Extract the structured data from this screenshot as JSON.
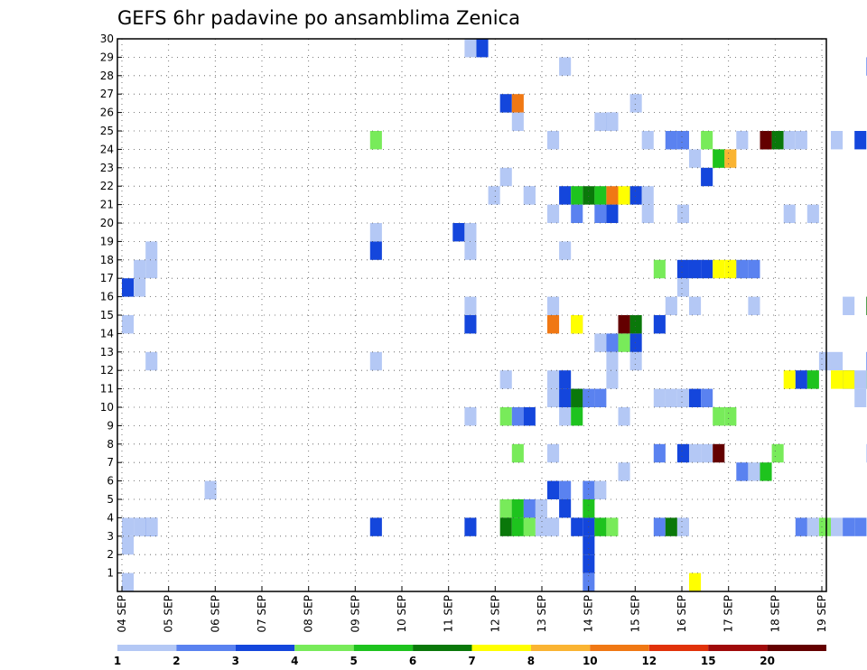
{
  "chart_data": {
    "type": "heatmap",
    "title": "GEFS 6hr padavine po ansamblima Zenica",
    "xlabel": "",
    "ylabel": "",
    "x_tick_labels": [
      "04 SEP",
      "05 SEP",
      "06 SEP",
      "07 SEP",
      "08 SEP",
      "09 SEP",
      "10 SEP",
      "11 SEP",
      "12 SEP",
      "13 SEP",
      "14 SEP",
      "15 SEP",
      "16 SEP",
      "17 SEP",
      "18 SEP",
      "19 SEP"
    ],
    "y_tick_labels": [
      1,
      2,
      3,
      4,
      5,
      6,
      7,
      8,
      9,
      10,
      11,
      12,
      13,
      14,
      15,
      16,
      17,
      18,
      19,
      20,
      21,
      22,
      23,
      24,
      25,
      26,
      27,
      28,
      29,
      30
    ],
    "ylim": [
      0,
      30
    ],
    "x_unit": "6-hour step from 04 SEP (4 steps per day)",
    "grid": true,
    "colorbar": {
      "labels": [
        "1",
        "2",
        "3",
        "4",
        "5",
        "6",
        "7",
        "8",
        "10",
        "12",
        "15",
        "20"
      ],
      "colors": [
        "#b4c8f5",
        "#5a82f0",
        "#1446dc",
        "#78eb5a",
        "#1ec31e",
        "#0a780a",
        "#ffff00",
        "#fab432",
        "#f07814",
        "#e1320a",
        "#a00a0a",
        "#640000"
      ]
    },
    "cells": [
      [
        0,
        0,
        1
      ],
      [
        0,
        2,
        1
      ],
      [
        0,
        3,
        1
      ],
      [
        1,
        3,
        1
      ],
      [
        2,
        3,
        3
      ],
      [
        0,
        14,
        1
      ],
      [
        0,
        16,
        3
      ],
      [
        1,
        16,
        1
      ],
      [
        1,
        17,
        1
      ],
      [
        2,
        18,
        1
      ],
      [
        2,
        17,
        1
      ],
      [
        2,
        12,
        1
      ],
      [
        2,
        3,
        1
      ],
      [
        7,
        5,
        1
      ],
      [
        21,
        3,
        3
      ],
      [
        21,
        12,
        1
      ],
      [
        21,
        18,
        3
      ],
      [
        21,
        19,
        1
      ],
      [
        21,
        24,
        4
      ],
      [
        29,
        18,
        1
      ],
      [
        29,
        15,
        1
      ],
      [
        29,
        14,
        3
      ],
      [
        29,
        9,
        1
      ],
      [
        29,
        3,
        3
      ],
      [
        28,
        19,
        3
      ],
      [
        29,
        19,
        1
      ],
      [
        29,
        29,
        1
      ],
      [
        30,
        29,
        3
      ],
      [
        32,
        9,
        4
      ],
      [
        33,
        9,
        2
      ],
      [
        34,
        9,
        3
      ],
      [
        33,
        7,
        4
      ],
      [
        32,
        4,
        6
      ],
      [
        32,
        3,
        6
      ],
      [
        32,
        4,
        4
      ],
      [
        33,
        3,
        5
      ],
      [
        33,
        4,
        5
      ],
      [
        34,
        4,
        2
      ],
      [
        34,
        3,
        4
      ],
      [
        35,
        4,
        1
      ],
      [
        35,
        3,
        1
      ],
      [
        31,
        21,
        1
      ],
      [
        32,
        22,
        1
      ],
      [
        32,
        11,
        1
      ],
      [
        32,
        26,
        3
      ],
      [
        33,
        26,
        9
      ],
      [
        33,
        25,
        1
      ],
      [
        34,
        21,
        1
      ],
      [
        34,
        21,
        1
      ],
      [
        36,
        11,
        1
      ],
      [
        36,
        3,
        1
      ],
      [
        36,
        5,
        3
      ],
      [
        36,
        7,
        1
      ],
      [
        36,
        10,
        1
      ],
      [
        36,
        14,
        9
      ],
      [
        36,
        15,
        1
      ],
      [
        36,
        24,
        1
      ],
      [
        36,
        20,
        1
      ],
      [
        37,
        10,
        3
      ],
      [
        37,
        4,
        3
      ],
      [
        37,
        5,
        2
      ],
      [
        37,
        9,
        1
      ],
      [
        37,
        18,
        1
      ],
      [
        37,
        21,
        3
      ],
      [
        37,
        28,
        1
      ],
      [
        37,
        11,
        3
      ],
      [
        38,
        10,
        3
      ],
      [
        38,
        3,
        3
      ],
      [
        38,
        21,
        5
      ],
      [
        38,
        20,
        2
      ],
      [
        38,
        9,
        5
      ],
      [
        38,
        10,
        6
      ],
      [
        38,
        14,
        8
      ],
      [
        38,
        14,
        7
      ],
      [
        39,
        21,
        6
      ],
      [
        39,
        10,
        2
      ],
      [
        39,
        3,
        3
      ],
      [
        39,
        5,
        2
      ],
      [
        39,
        4,
        5
      ],
      [
        39,
        1,
        3
      ],
      [
        39,
        2,
        3
      ],
      [
        39,
        0,
        2
      ],
      [
        40,
        21,
        5
      ],
      [
        40,
        10,
        2
      ],
      [
        40,
        3,
        5
      ],
      [
        40,
        5,
        1
      ],
      [
        40,
        13,
        1
      ],
      [
        40,
        20,
        2
      ],
      [
        40,
        25,
        1
      ],
      [
        41,
        21,
        9
      ],
      [
        41,
        20,
        3
      ],
      [
        41,
        25,
        3
      ],
      [
        41,
        13,
        2
      ],
      [
        41,
        3,
        4
      ],
      [
        41,
        11,
        1
      ],
      [
        41,
        12,
        1
      ],
      [
        41,
        25,
        1
      ],
      [
        42,
        21,
        7
      ],
      [
        42,
        14,
        12
      ],
      [
        42,
        13,
        4
      ],
      [
        42,
        6,
        1
      ],
      [
        42,
        9,
        1
      ],
      [
        43,
        21,
        3
      ],
      [
        43,
        12,
        1
      ],
      [
        43,
        14,
        6
      ],
      [
        43,
        13,
        3
      ],
      [
        43,
        26,
        1
      ],
      [
        44,
        20,
        1
      ],
      [
        44,
        21,
        1
      ],
      [
        44,
        24,
        1
      ],
      [
        45,
        3,
        2
      ],
      [
        45,
        7,
        2
      ],
      [
        45,
        14,
        3
      ],
      [
        45,
        17,
        4
      ],
      [
        45,
        10,
        1
      ],
      [
        46,
        24,
        1
      ],
      [
        46,
        15,
        1
      ],
      [
        46,
        3,
        6
      ],
      [
        46,
        10,
        1
      ],
      [
        46,
        24,
        2
      ],
      [
        47,
        7,
        3
      ],
      [
        47,
        10,
        1
      ],
      [
        47,
        24,
        2
      ],
      [
        47,
        17,
        3
      ],
      [
        47,
        3,
        1
      ],
      [
        47,
        16,
        1
      ],
      [
        47,
        20,
        1
      ],
      [
        48,
        23,
        1
      ],
      [
        48,
        10,
        3
      ],
      [
        48,
        17,
        3
      ],
      [
        48,
        7,
        1
      ],
      [
        48,
        15,
        1
      ],
      [
        48,
        0,
        7
      ],
      [
        49,
        24,
        4
      ],
      [
        49,
        17,
        3
      ],
      [
        49,
        7,
        1
      ],
      [
        49,
        10,
        2
      ],
      [
        49,
        22,
        3
      ],
      [
        50,
        9,
        4
      ],
      [
        50,
        23,
        7
      ],
      [
        50,
        17,
        7
      ],
      [
        50,
        23,
        5
      ],
      [
        50,
        7,
        12
      ],
      [
        51,
        9,
        4
      ],
      [
        51,
        23,
        8
      ],
      [
        51,
        17,
        7
      ],
      [
        52,
        6,
        2
      ],
      [
        52,
        24,
        1
      ],
      [
        52,
        17,
        2
      ],
      [
        53,
        17,
        2
      ],
      [
        53,
        6,
        1
      ],
      [
        53,
        15,
        1
      ],
      [
        54,
        24,
        11
      ],
      [
        54,
        24,
        12
      ],
      [
        54,
        6,
        5
      ],
      [
        55,
        24,
        6
      ],
      [
        55,
        7,
        4
      ],
      [
        56,
        24,
        1
      ],
      [
        56,
        20,
        1
      ],
      [
        56,
        11,
        7
      ],
      [
        57,
        11,
        3
      ],
      [
        57,
        24,
        1
      ],
      [
        57,
        3,
        2
      ],
      [
        58,
        11,
        5
      ],
      [
        58,
        20,
        1
      ],
      [
        58,
        3,
        1
      ],
      [
        59,
        3,
        4
      ],
      [
        59,
        12,
        1
      ],
      [
        60,
        3,
        1
      ],
      [
        60,
        12,
        1
      ],
      [
        60,
        11,
        7
      ],
      [
        60,
        24,
        1
      ],
      [
        61,
        11,
        3
      ],
      [
        61,
        15,
        1
      ],
      [
        61,
        11,
        7
      ],
      [
        61,
        3,
        2
      ],
      [
        62,
        11,
        1
      ],
      [
        62,
        24,
        3
      ],
      [
        62,
        3,
        2
      ],
      [
        62,
        10,
        1
      ],
      [
        63,
        28,
        2
      ],
      [
        63,
        11,
        5
      ],
      [
        63,
        12,
        2
      ],
      [
        63,
        3,
        1
      ],
      [
        63,
        15,
        6
      ],
      [
        63,
        11,
        1
      ],
      [
        63,
        7,
        1
      ],
      [
        64,
        11,
        1
      ],
      [
        64,
        24,
        1
      ],
      [
        64,
        3,
        2
      ],
      [
        64,
        9,
        5
      ],
      [
        64,
        9,
        5
      ],
      [
        64,
        7,
        1
      ],
      [
        65,
        3,
        1
      ],
      [
        65,
        11,
        2
      ],
      [
        65,
        7,
        1
      ],
      [
        66,
        3,
        1
      ],
      [
        66,
        28,
        1
      ],
      [
        66,
        16,
        1
      ],
      [
        67,
        28,
        4
      ],
      [
        67,
        2,
        2
      ],
      [
        67,
        3,
        1
      ],
      [
        67,
        1,
        12
      ],
      [
        67,
        11,
        2
      ],
      [
        68,
        1,
        11
      ],
      [
        68,
        1,
        12
      ],
      [
        68,
        2,
        6
      ],
      [
        68,
        28,
        6
      ],
      [
        69,
        1,
        8
      ],
      [
        69,
        28,
        6
      ],
      [
        70,
        1,
        5
      ],
      [
        70,
        28,
        5
      ],
      [
        71,
        1,
        6
      ],
      [
        71,
        28,
        1
      ],
      [
        72,
        1,
        1
      ],
      [
        72,
        28,
        3
      ],
      [
        73,
        17,
        1
      ],
      [
        73,
        28,
        1
      ],
      [
        73,
        15,
        8
      ],
      [
        74,
        27,
        3
      ],
      [
        74,
        17,
        1
      ],
      [
        74,
        15,
        1
      ],
      [
        74,
        24,
        1
      ],
      [
        74,
        5,
        2
      ],
      [
        74,
        13,
        1
      ]
    ]
  }
}
